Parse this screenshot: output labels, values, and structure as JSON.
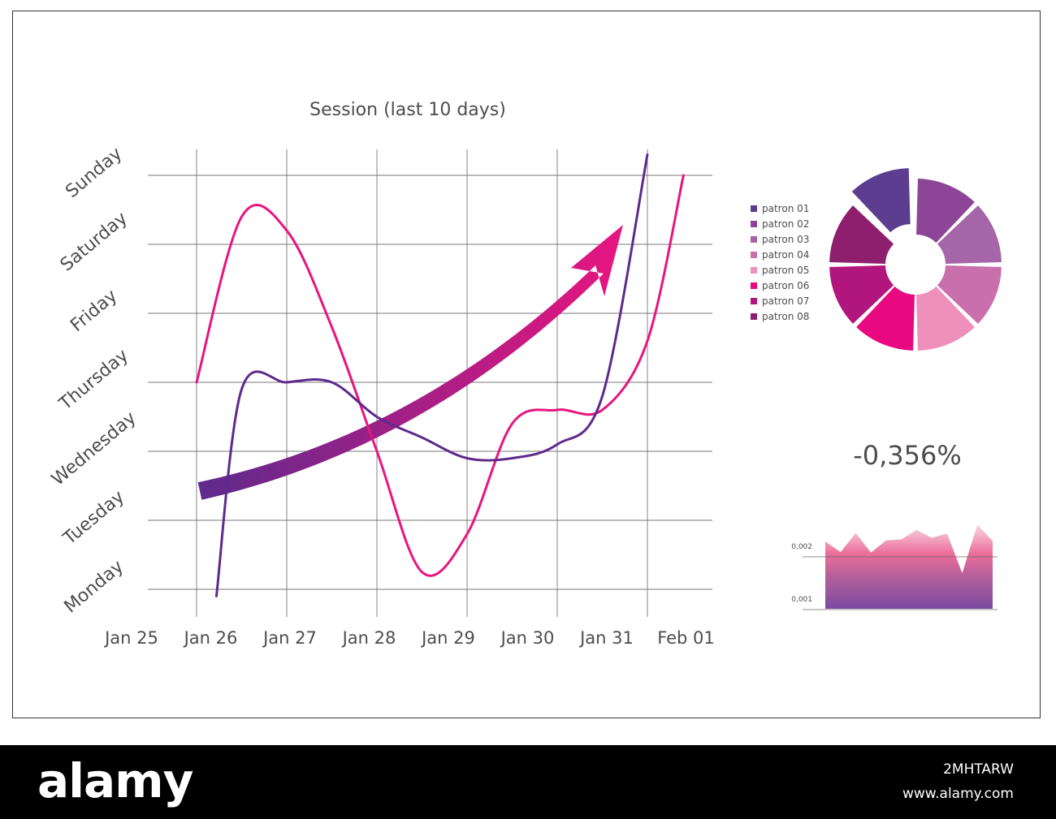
{
  "chart_data": [
    {
      "type": "line",
      "title": "Session (last 10 days)",
      "x_categories": [
        "Jan 25",
        "Jan 26",
        "Jan 27",
        "Jan 28",
        "Jan 29",
        "Jan 30",
        "Jan 31",
        "Feb 01"
      ],
      "y_categories": [
        "Monday",
        "Tuesday",
        "Wednesday",
        "Thursday",
        "Friday",
        "Saturday",
        "Sunday"
      ],
      "grid": true,
      "series": [
        {
          "color": "#e8157f",
          "points": [
            {
              "x": "Jan 26",
              "y": 3.0
            },
            {
              "x": "Jan 26.5",
              "y": 5.4
            },
            {
              "x": "Jan 27",
              "y": 5.2
            },
            {
              "x": "Jan 27.5",
              "y": 3.8
            },
            {
              "x": "Jan 28",
              "y": 2.0
            },
            {
              "x": "Jan 28.5",
              "y": 0.25
            },
            {
              "x": "Jan 29",
              "y": 0.8
            },
            {
              "x": "Jan 29.5",
              "y": 2.4
            },
            {
              "x": "Jan 30",
              "y": 2.6
            },
            {
              "x": "Jan 30.5",
              "y": 2.6
            },
            {
              "x": "Jan 31",
              "y": 3.6
            },
            {
              "x": "Feb 01",
              "y": 6.0
            }
          ]
        },
        {
          "color": "#5e2a8c",
          "points": [
            {
              "x": "Jan 26",
              "y": -0.1
            },
            {
              "x": "Jan 26.5",
              "y": 2.9
            },
            {
              "x": "Jan 27",
              "y": 3.0
            },
            {
              "x": "Jan 27.5",
              "y": 3.0
            },
            {
              "x": "Jan 28",
              "y": 2.5
            },
            {
              "x": "Jan 28.5",
              "y": 2.2
            },
            {
              "x": "Jan 29",
              "y": 1.9
            },
            {
              "x": "Jan 29.5",
              "y": 1.9
            },
            {
              "x": "Jan 30",
              "y": 2.1
            },
            {
              "x": "Jan 30.5",
              "y": 2.8
            },
            {
              "x": "Jan 31",
              "y": 6.3
            }
          ]
        }
      ],
      "trend_arrow": {
        "colors": [
          "#5e2a8c",
          "#e8157f"
        ],
        "direction": "up"
      }
    },
    {
      "type": "pie",
      "variant": "donut",
      "series": [
        {
          "name": "patron 01",
          "value": 1,
          "color": "#5c3d8f"
        },
        {
          "name": "patron 02",
          "value": 1,
          "color": "#8d4697"
        },
        {
          "name": "patron 03",
          "value": 1,
          "color": "#a565a8"
        },
        {
          "name": "patron 04",
          "value": 1,
          "color": "#c96fac"
        },
        {
          "name": "patron 05",
          "value": 1,
          "color": "#ef8fbc"
        },
        {
          "name": "patron 06",
          "value": 1,
          "color": "#e8087f"
        },
        {
          "name": "patron 07",
          "value": 1,
          "color": "#b1167e"
        },
        {
          "name": "patron 08",
          "value": 1,
          "color": "#8e1f6e"
        }
      ],
      "legend_position": "left"
    },
    {
      "type": "area",
      "headline": "-0,356%",
      "y_tick_labels": [
        "0,002",
        "0,001"
      ],
      "values": [
        0.00226,
        0.00206,
        0.00242,
        0.00205,
        0.00228,
        0.0023,
        0.00248,
        0.00233,
        0.00241,
        0.00166,
        0.00258,
        0.00227
      ],
      "gradient": [
        "#ec6d99",
        "#7a4aa0"
      ]
    }
  ],
  "footer": {
    "brand": "alamy",
    "image_id": "2MHTARW",
    "url": "www.alamy.com"
  }
}
